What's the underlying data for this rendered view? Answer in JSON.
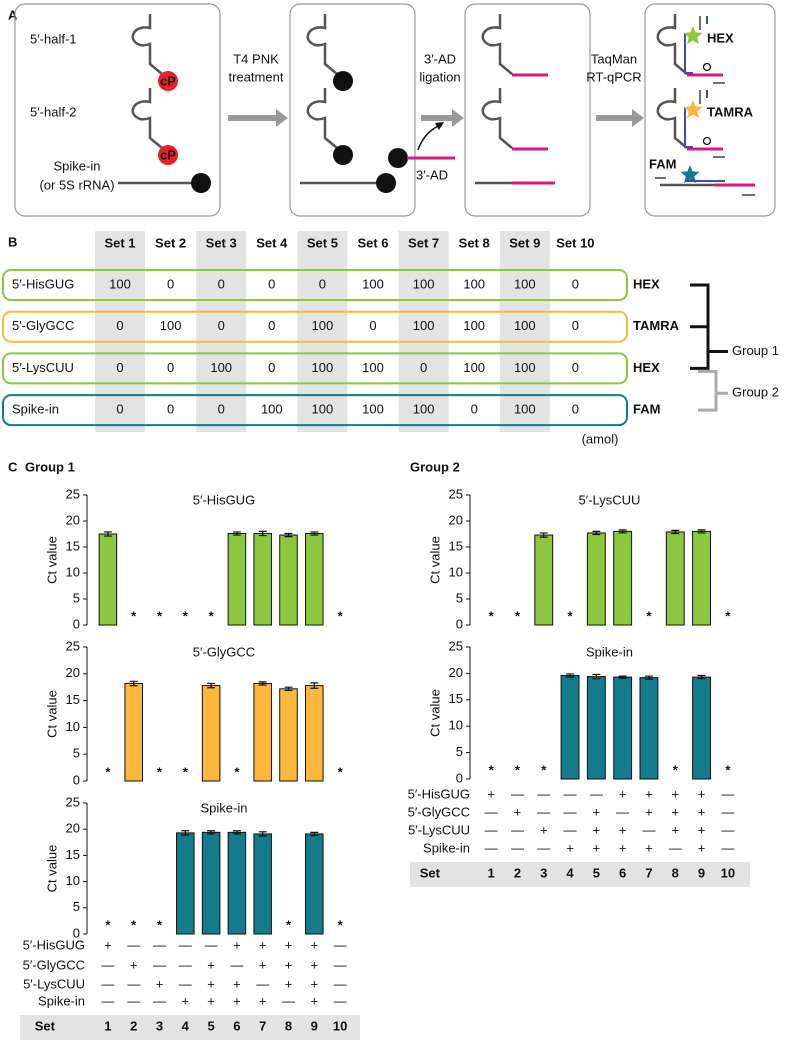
{
  "panel_a": {
    "label": "A",
    "half1": "5′-half-1",
    "half2": "5′-half-2",
    "spike": "Spike-in",
    "spike_note": "(or 5S rRNA)",
    "badges_cp": [
      "cP",
      "cP"
    ],
    "badges_oh": [
      "OH",
      "OH",
      "OH",
      "OH"
    ],
    "step1": [
      "T4 PNK",
      "treatment"
    ],
    "step2": [
      "3′-AD",
      "ligation"
    ],
    "step3": [
      "TaqMan",
      "RT-qPCR"
    ],
    "phosphate": "P",
    "adapter": "3′-AD",
    "dyes": [
      {
        "name": "HEX",
        "color": "#8dc63f"
      },
      {
        "name": "TAMRA",
        "color": "#fbb83c"
      },
      {
        "name": "FAM",
        "color": "#137b8b"
      }
    ]
  },
  "panel_b": {
    "label": "B",
    "sets": [
      "Set 1",
      "Set 2",
      "Set 3",
      "Set 4",
      "Set 5",
      "Set 6",
      "Set 7",
      "Set 8",
      "Set 9",
      "Set 10"
    ],
    "rows": [
      {
        "name": "5′-HisGUG",
        "dye": "HEX",
        "color": "#8dc63f",
        "values": [
          100,
          0,
          0,
          0,
          0,
          100,
          100,
          100,
          100,
          0
        ]
      },
      {
        "name": "5′-GlyGCC",
        "dye": "TAMRA",
        "color": "#fbb83c",
        "values": [
          0,
          100,
          0,
          0,
          100,
          0,
          100,
          100,
          100,
          0
        ]
      },
      {
        "name": "5′-LysCUU",
        "dye": "HEX",
        "color": "#8dc63f",
        "values": [
          0,
          0,
          100,
          0,
          100,
          100,
          0,
          100,
          100,
          0
        ]
      },
      {
        "name": "Spike-in",
        "dye": "FAM",
        "color": "#137b8b",
        "values": [
          0,
          0,
          0,
          100,
          100,
          100,
          100,
          0,
          100,
          0
        ]
      }
    ],
    "unit": "(amol)",
    "group1": "Group 1",
    "group2": "Group 2"
  },
  "panel_c": {
    "label": "C",
    "groups": [
      {
        "title": "Group 1",
        "set_label": "Set",
        "categories": [
          "1",
          "2",
          "3",
          "4",
          "5",
          "6",
          "7",
          "8",
          "9",
          "10"
        ],
        "matrix": [
          {
            "name": "5′-HisGUG",
            "signs": [
              "+",
              "—",
              "—",
              "—",
              "—",
              "+",
              "+",
              "+",
              "+",
              "—"
            ]
          },
          {
            "name": "5′-GlyGCC",
            "signs": [
              "—",
              "+",
              "—",
              "—",
              "+",
              "—",
              "+",
              "+",
              "+",
              "—"
            ]
          },
          {
            "name": "5′-LysCUU",
            "signs": [
              "—",
              "—",
              "+",
              "—",
              "+",
              "+",
              "—",
              "+",
              "+",
              "—"
            ]
          },
          {
            "name": "Spike-in",
            "signs": [
              "—",
              "—",
              "—",
              "+",
              "+",
              "+",
              "+",
              "—",
              "+",
              "—"
            ]
          }
        ]
      },
      {
        "title": "Group 2",
        "set_label": "Set",
        "categories": [
          "1",
          "2",
          "3",
          "4",
          "5",
          "6",
          "7",
          "8",
          "9",
          "10"
        ],
        "matrix": [
          {
            "name": "5′-HisGUG",
            "signs": [
              "+",
              "—",
              "—",
              "—",
              "—",
              "+",
              "+",
              "+",
              "+",
              "—"
            ]
          },
          {
            "name": "5′-GlyGCC",
            "signs": [
              "—",
              "+",
              "—",
              "—",
              "+",
              "—",
              "+",
              "+",
              "+",
              "—"
            ]
          },
          {
            "name": "5′-LysCUU",
            "signs": [
              "—",
              "—",
              "+",
              "—",
              "+",
              "+",
              "—",
              "+",
              "+",
              "—"
            ]
          },
          {
            "name": "Spike-in",
            "signs": [
              "—",
              "—",
              "—",
              "+",
              "+",
              "+",
              "+",
              "—",
              "+",
              "—"
            ]
          }
        ]
      }
    ]
  },
  "chart_data": [
    {
      "type": "bar",
      "title": "5′-HisGUG",
      "ylabel": "Ct value",
      "color": "#8dc63f",
      "ylim": [
        0,
        25
      ],
      "yticks": [
        0,
        5,
        10,
        15,
        20,
        25
      ],
      "nd_label": "*",
      "values": [
        17.5,
        null,
        null,
        null,
        null,
        17.6,
        17.6,
        17.3,
        17.6,
        null
      ],
      "errors": [
        0.4,
        null,
        null,
        null,
        null,
        0.3,
        0.4,
        0.3,
        0.3,
        null
      ]
    },
    {
      "type": "bar",
      "title": "5′-GlyGCC",
      "ylabel": "Ct value",
      "color": "#fbb83c",
      "ylim": [
        0,
        25
      ],
      "yticks": [
        0,
        5,
        10,
        15,
        20,
        25
      ],
      "nd_label": "*",
      "values": [
        null,
        18.2,
        null,
        null,
        17.8,
        null,
        18.2,
        17.2,
        17.8,
        null
      ],
      "errors": [
        null,
        0.4,
        null,
        null,
        0.4,
        null,
        0.3,
        0.3,
        0.5,
        null
      ]
    },
    {
      "type": "bar",
      "title": "Spike-in",
      "ylabel": "Ct value",
      "color": "#137b8b",
      "ylim": [
        0,
        25
      ],
      "yticks": [
        0,
        5,
        10,
        15,
        20,
        25
      ],
      "nd_label": "*",
      "values": [
        null,
        null,
        null,
        19.3,
        19.4,
        19.4,
        19.1,
        null,
        19.1,
        null
      ],
      "errors": [
        null,
        null,
        null,
        0.4,
        0.3,
        0.3,
        0.4,
        null,
        0.3,
        null
      ]
    },
    {
      "type": "bar",
      "title": "5′-LysCUU",
      "ylabel": "Ct value",
      "color": "#8dc63f",
      "ylim": [
        0,
        25
      ],
      "yticks": [
        0,
        5,
        10,
        15,
        20,
        25
      ],
      "nd_label": "*",
      "values": [
        null,
        null,
        17.3,
        null,
        17.7,
        18.0,
        null,
        17.9,
        18.0,
        null
      ],
      "errors": [
        null,
        null,
        0.4,
        null,
        0.3,
        0.3,
        null,
        0.3,
        0.3,
        null
      ]
    },
    {
      "type": "bar",
      "title": "Spike-in",
      "ylabel": "Ct value",
      "color": "#137b8b",
      "ylim": [
        0,
        25
      ],
      "yticks": [
        0,
        5,
        10,
        15,
        20,
        25
      ],
      "nd_label": "*",
      "values": [
        null,
        null,
        null,
        19.6,
        19.4,
        19.3,
        19.2,
        null,
        19.3,
        null
      ],
      "errors": [
        null,
        null,
        null,
        0.3,
        0.4,
        0.2,
        0.3,
        null,
        0.3,
        null
      ]
    }
  ]
}
